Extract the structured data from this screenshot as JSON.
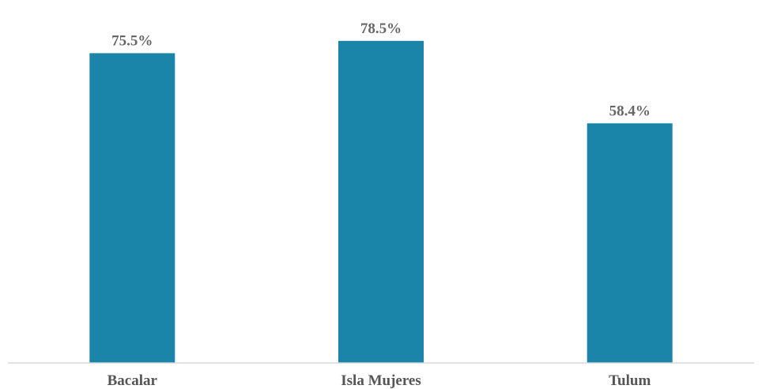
{
  "chart_data": {
    "type": "bar",
    "categories": [
      "Bacalar",
      "Isla Mujeres",
      "Tulum"
    ],
    "values": [
      75.5,
      78.5,
      58.4
    ],
    "value_labels": [
      "75.5%",
      "78.5%",
      "58.4%"
    ],
    "title": "",
    "xlabel": "",
    "ylabel": "",
    "ylim": [
      0,
      85
    ],
    "grid": false,
    "legend": "none",
    "bar_color": "#1a85a9",
    "axis_color": "#d9d9d9",
    "label_color": "#666666"
  }
}
